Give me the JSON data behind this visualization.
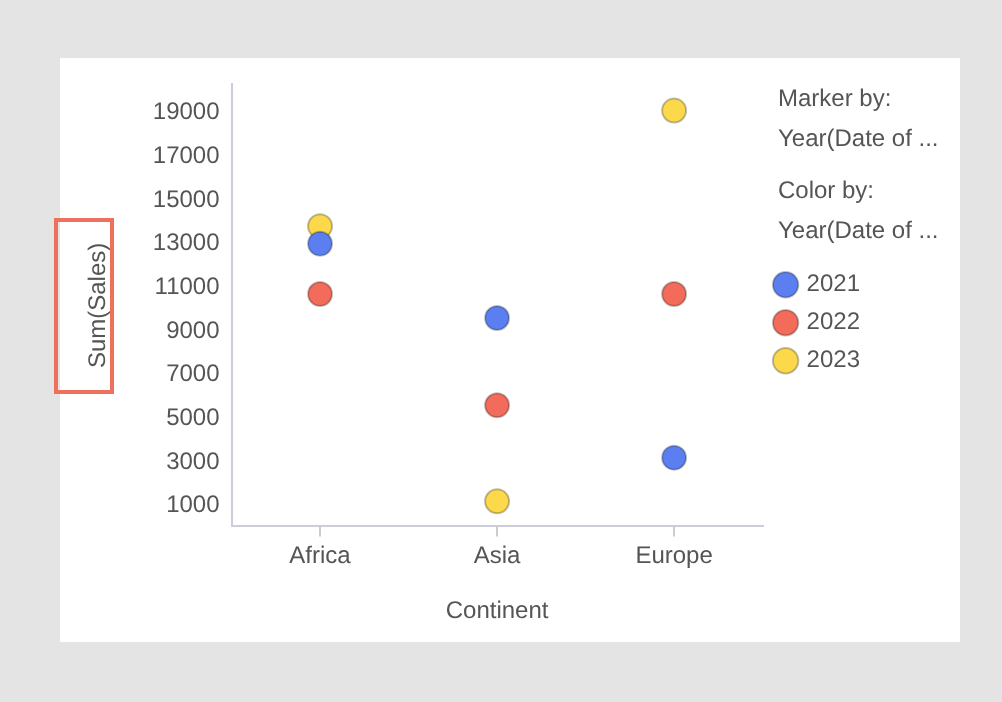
{
  "chart_data": {
    "type": "scatter",
    "xlabel": "Continent",
    "ylabel": "Sum(Sales)",
    "categories": [
      "Africa",
      "Asia",
      "Europe"
    ],
    "series": [
      {
        "name": "2021",
        "color": "#5b7ff0",
        "values": [
          13000,
          9600,
          3200
        ]
      },
      {
        "name": "2022",
        "color": "#f26b5b",
        "values": [
          10700,
          5600,
          10700
        ]
      },
      {
        "name": "2023",
        "color": "#fcd94a",
        "values": [
          13800,
          1200,
          19100
        ]
      }
    ],
    "ylim": [
      50,
      20300
    ],
    "yticks": [
      1000,
      3000,
      5000,
      7000,
      9000,
      11000,
      13000,
      15000,
      17000,
      19000
    ],
    "grid": false,
    "legend": "right",
    "marker": "circle",
    "legend_title": "Year(Date of ...",
    "annotations": [
      "Marker by:",
      "Year(Date of ...",
      "Color by:"
    ]
  }
}
